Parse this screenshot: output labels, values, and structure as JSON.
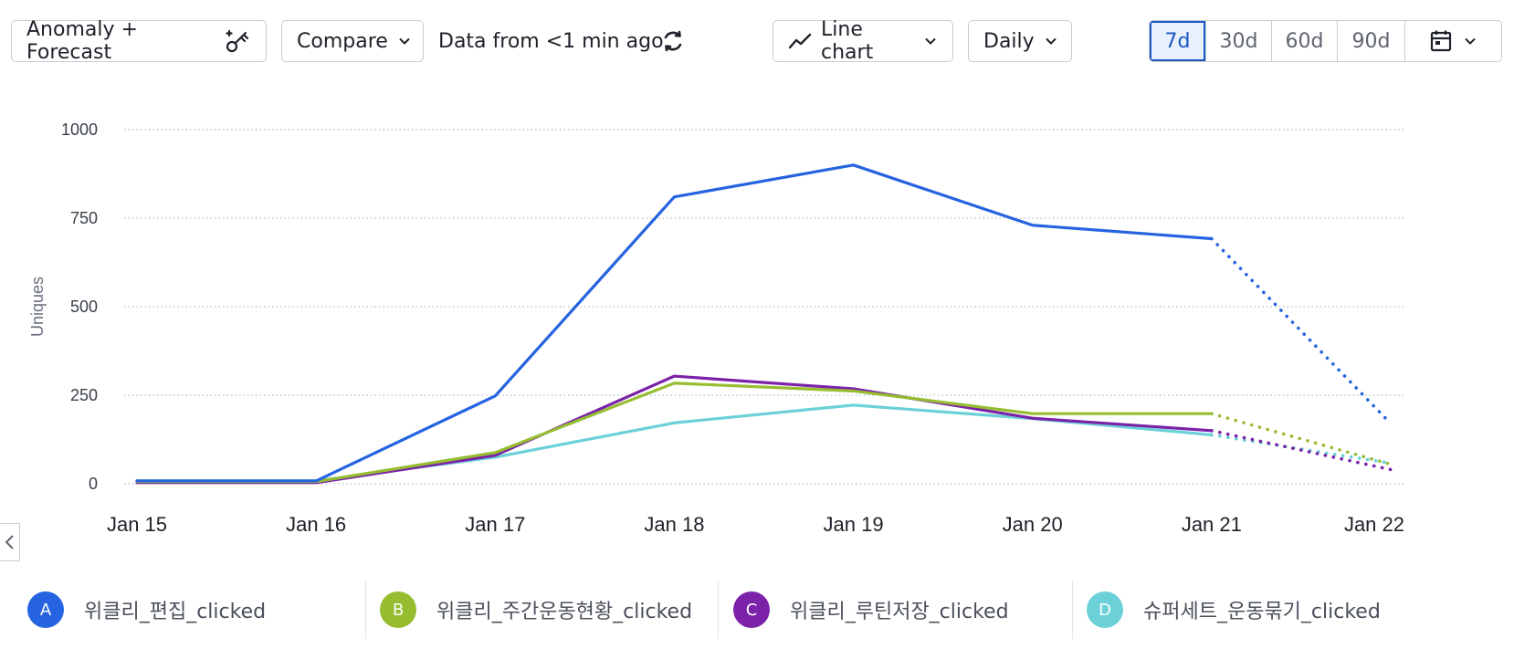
{
  "toolbar": {
    "anomaly_label": "Anomaly + Forecast",
    "compare_label": "Compare",
    "data_status": "Data from <1 min ago",
    "chart_type_label": "Line chart",
    "interval_label": "Daily",
    "ranges": [
      "7d",
      "30d",
      "60d",
      "90d"
    ],
    "active_range": "7d"
  },
  "icons": {
    "anomaly": "wand-sparkle-icon",
    "compare": "chevron-down-icon",
    "refresh": "refresh-icon",
    "chart_type": "line-chart-icon",
    "calendar": "calendar-icon",
    "collapse": "chevron-left-icon"
  },
  "legend": [
    {
      "letter": "A",
      "name": "위클리_편집_clicked",
      "color": "#2563e0"
    },
    {
      "letter": "B",
      "name": "위클리_주간운동현황_clicked",
      "color": "#95bd2f"
    },
    {
      "letter": "C",
      "name": "위클리_루틴저장_clicked",
      "color": "#7b22a8"
    },
    {
      "letter": "D",
      "name": "슈퍼세트_운동묶기_clicked",
      "color": "#6bd0d8"
    }
  ],
  "chart_data": {
    "type": "line",
    "ylabel": "Uniques",
    "xlabel": "",
    "ylim": [
      0,
      1000
    ],
    "yticks": [
      0,
      250,
      500,
      750,
      1000
    ],
    "x": [
      "Jan 15",
      "Jan 16",
      "Jan 17",
      "Jan 18",
      "Jan 19",
      "Jan 20",
      "Jan 21",
      "Jan 22"
    ],
    "forecast_from_index": 6,
    "grid": true,
    "series": [
      {
        "name": "위클리_편집_clicked",
        "color": "#2563e0",
        "values": [
          8,
          8,
          248,
          810,
          900,
          730,
          692,
          170
        ]
      },
      {
        "name": "위클리_주간운동현황_clicked",
        "color": "#95bd2f",
        "values": [
          6,
          6,
          88,
          284,
          262,
          198,
          198,
          55
        ]
      },
      {
        "name": "위클리_루틴저장_clicked",
        "color": "#7b22a8",
        "values": [
          3,
          3,
          80,
          304,
          268,
          185,
          150,
          40
        ]
      },
      {
        "name": "슈퍼세트_운동묶기_clicked",
        "color": "#6bd0d8",
        "values": [
          8,
          8,
          75,
          172,
          222,
          184,
          138,
          58
        ]
      }
    ]
  }
}
